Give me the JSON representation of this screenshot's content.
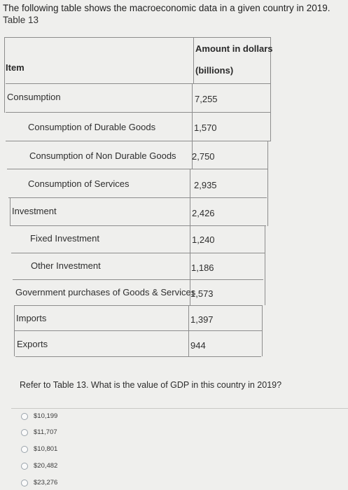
{
  "intro_text": "The following table shows the macroeconomic data in a given country in 2019.",
  "table_caption": "Table 13",
  "table": {
    "header": {
      "item": "Item",
      "amount_line1": "Amount in dollars",
      "amount_line2": "(billions)"
    },
    "rows": [
      {
        "item": "Consumption",
        "amount": "7,255"
      },
      {
        "item": "Consumption of Durable Goods",
        "amount": "1,570"
      },
      {
        "item": "Consumption of Non Durable Goods",
        "amount": "2,750"
      },
      {
        "item": "Consumption of Services",
        "amount": "2,935"
      },
      {
        "item": "Investment",
        "amount": "2,426"
      },
      {
        "item": "Fixed Investment",
        "amount": "1,240"
      },
      {
        "item": "Other Investment",
        "amount": "1,186"
      },
      {
        "item": "Government purchases of Goods & Services",
        "amount": "1,573"
      },
      {
        "item": "Imports",
        "amount": "1,397"
      },
      {
        "item": "Exports",
        "amount": "944"
      }
    ]
  },
  "question": "Refer to Table 13. What is the value of GDP in this country in 2019?",
  "options": [
    "$10,199",
    "$11,707",
    "$10,801",
    "$20,482",
    "$23,276"
  ],
  "colors": {
    "background": "#efefed",
    "grid_line": "#8d8d8d",
    "radio_border": "#9aa3ab"
  }
}
